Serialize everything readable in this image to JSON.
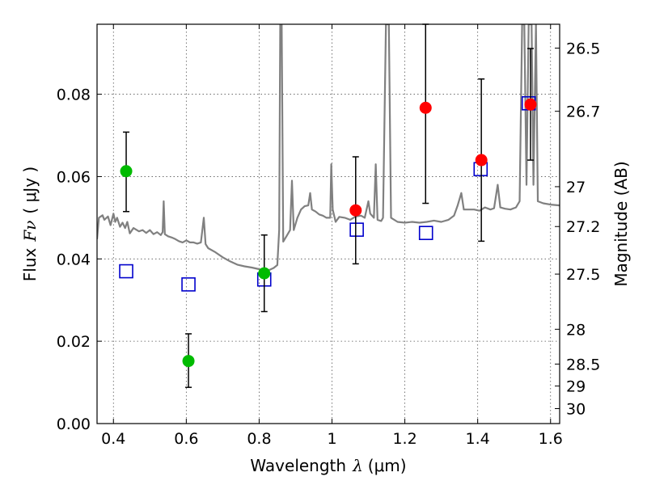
{
  "chart_data": {
    "type": "scatter",
    "xlabel_text": "Wavelength",
    "xlabel_symbol": "λ",
    "xlabel_unit": "(μm)",
    "ylabel_text": "Flux",
    "ylabel_symbol": "Fν",
    "ylabel_unit": "( μJy )",
    "y2label": "Magnitude (AB)",
    "xlim": [
      0.355,
      1.625
    ],
    "ylim": [
      0.0,
      0.097
    ],
    "grid": true,
    "legend": "none",
    "x_ticks": [
      {
        "value": 0.4,
        "label": "0.4"
      },
      {
        "value": 0.6,
        "label": "0.6"
      },
      {
        "value": 0.8,
        "label": "0.8"
      },
      {
        "value": 1.0,
        "label": "1"
      },
      {
        "value": 1.2,
        "label": "1.2"
      },
      {
        "value": 1.4,
        "label": "1.4"
      },
      {
        "value": 1.6,
        "label": "1.6"
      }
    ],
    "y_ticks": [
      {
        "value": 0.0,
        "label": "0.00"
      },
      {
        "value": 0.02,
        "label": "0.02"
      },
      {
        "value": 0.04,
        "label": "0.04"
      },
      {
        "value": 0.06,
        "label": "0.06"
      },
      {
        "value": 0.08,
        "label": "0.08"
      }
    ],
    "y2_ticks": [
      {
        "value": 26.5,
        "label": "26.5"
      },
      {
        "value": 26.7,
        "label": "26.7"
      },
      {
        "value": 27.0,
        "label": "27"
      },
      {
        "value": 27.2,
        "label": "27.2"
      },
      {
        "value": 27.5,
        "label": "27.5"
      },
      {
        "value": 28.0,
        "label": "28"
      },
      {
        "value": 28.5,
        "label": "28.5"
      },
      {
        "value": 29.0,
        "label": "29"
      },
      {
        "value": 30.0,
        "label": "30"
      }
    ],
    "colors": {
      "model_line": "#808080",
      "model_points": "#0000cc",
      "optical_detections": "#00bb00",
      "nir_detections": "#ff0000",
      "errorbars": "#000000",
      "grid": "#555555"
    },
    "series": [
      {
        "style": "errorbar-circle",
        "color": "#00bb00",
        "points": [
          {
            "x": 0.435,
            "y": 0.0613,
            "ylo": 0.0515,
            "yhi": 0.0708
          },
          {
            "x": 0.606,
            "y": 0.0152,
            "ylo": 0.0088,
            "yhi": 0.0218
          },
          {
            "x": 0.814,
            "y": 0.0365,
            "ylo": 0.0272,
            "yhi": 0.0458
          }
        ]
      },
      {
        "style": "errorbar-circle",
        "color": "#ff0000",
        "points": [
          {
            "x": 1.065,
            "y": 0.0518,
            "ylo": 0.0388,
            "yhi": 0.0648
          },
          {
            "x": 1.257,
            "y": 0.0767,
            "ylo": 0.0535,
            "yhi": 0.097
          },
          {
            "x": 1.41,
            "y": 0.064,
            "ylo": 0.0443,
            "yhi": 0.0837
          },
          {
            "x": 1.545,
            "y": 0.0775,
            "ylo": 0.064,
            "yhi": 0.0911
          }
        ]
      },
      {
        "style": "open-square",
        "color": "#0000cc",
        "points": [
          {
            "x": 0.435,
            "y": 0.037
          },
          {
            "x": 0.606,
            "y": 0.0338
          },
          {
            "x": 0.814,
            "y": 0.035
          },
          {
            "x": 1.068,
            "y": 0.0471
          },
          {
            "x": 1.258,
            "y": 0.0463
          },
          {
            "x": 1.408,
            "y": 0.0618
          },
          {
            "x": 1.54,
            "y": 0.0778
          }
        ]
      },
      {
        "style": "line",
        "color": "#808080",
        "points": [
          [
            0.355,
            0.0448
          ],
          [
            0.36,
            0.05
          ],
          [
            0.37,
            0.0506
          ],
          [
            0.375,
            0.0495
          ],
          [
            0.385,
            0.0503
          ],
          [
            0.392,
            0.0482
          ],
          [
            0.4,
            0.051
          ],
          [
            0.405,
            0.049
          ],
          [
            0.41,
            0.05
          ],
          [
            0.418,
            0.0478
          ],
          [
            0.425,
            0.0488
          ],
          [
            0.432,
            0.0475
          ],
          [
            0.438,
            0.049
          ],
          [
            0.445,
            0.0462
          ],
          [
            0.455,
            0.0475
          ],
          [
            0.47,
            0.0467
          ],
          [
            0.48,
            0.047
          ],
          [
            0.49,
            0.0463
          ],
          [
            0.5,
            0.047
          ],
          [
            0.51,
            0.046
          ],
          [
            0.52,
            0.0465
          ],
          [
            0.53,
            0.0458
          ],
          [
            0.535,
            0.0465
          ],
          [
            0.538,
            0.054
          ],
          [
            0.541,
            0.046
          ],
          [
            0.55,
            0.0455
          ],
          [
            0.56,
            0.0452
          ],
          [
            0.57,
            0.0448
          ],
          [
            0.58,
            0.0443
          ],
          [
            0.59,
            0.044
          ],
          [
            0.6,
            0.0445
          ],
          [
            0.61,
            0.044
          ],
          [
            0.62,
            0.044
          ],
          [
            0.63,
            0.0437
          ],
          [
            0.64,
            0.044
          ],
          [
            0.648,
            0.05
          ],
          [
            0.653,
            0.0436
          ],
          [
            0.66,
            0.0426
          ],
          [
            0.68,
            0.0416
          ],
          [
            0.7,
            0.0404
          ],
          [
            0.72,
            0.0394
          ],
          [
            0.74,
            0.0386
          ],
          [
            0.76,
            0.0382
          ],
          [
            0.78,
            0.0379
          ],
          [
            0.8,
            0.0375
          ],
          [
            0.82,
            0.037
          ],
          [
            0.84,
            0.0378
          ],
          [
            0.85,
            0.0385
          ],
          [
            0.855,
            0.047
          ],
          [
            0.858,
            0.097
          ],
          [
            0.862,
            0.097
          ],
          [
            0.866,
            0.0442
          ],
          [
            0.875,
            0.0455
          ],
          [
            0.885,
            0.047
          ],
          [
            0.89,
            0.059
          ],
          [
            0.895,
            0.047
          ],
          [
            0.905,
            0.05
          ],
          [
            0.915,
            0.052
          ],
          [
            0.925,
            0.0528
          ],
          [
            0.935,
            0.053
          ],
          [
            0.94,
            0.056
          ],
          [
            0.945,
            0.052
          ],
          [
            0.955,
            0.0515
          ],
          [
            0.965,
            0.0508
          ],
          [
            0.975,
            0.0505
          ],
          [
            0.985,
            0.05
          ],
          [
            0.995,
            0.05
          ],
          [
            0.998,
            0.063
          ],
          [
            1.002,
            0.052
          ],
          [
            1.01,
            0.049
          ],
          [
            1.02,
            0.0502
          ],
          [
            1.035,
            0.05
          ],
          [
            1.05,
            0.0495
          ],
          [
            1.065,
            0.0503
          ],
          [
            1.08,
            0.0505
          ],
          [
            1.09,
            0.05
          ],
          [
            1.1,
            0.054
          ],
          [
            1.105,
            0.051
          ],
          [
            1.115,
            0.05
          ],
          [
            1.12,
            0.063
          ],
          [
            1.125,
            0.0495
          ],
          [
            1.135,
            0.0492
          ],
          [
            1.14,
            0.05
          ],
          [
            1.148,
            0.097
          ],
          [
            1.156,
            0.097
          ],
          [
            1.162,
            0.05
          ],
          [
            1.18,
            0.049
          ],
          [
            1.2,
            0.0488
          ],
          [
            1.22,
            0.049
          ],
          [
            1.24,
            0.0488
          ],
          [
            1.26,
            0.049
          ],
          [
            1.28,
            0.0493
          ],
          [
            1.3,
            0.049
          ],
          [
            1.32,
            0.0495
          ],
          [
            1.335,
            0.0505
          ],
          [
            1.345,
            0.053
          ],
          [
            1.355,
            0.056
          ],
          [
            1.362,
            0.052
          ],
          [
            1.375,
            0.052
          ],
          [
            1.39,
            0.052
          ],
          [
            1.405,
            0.0517
          ],
          [
            1.42,
            0.0525
          ],
          [
            1.435,
            0.052
          ],
          [
            1.445,
            0.0523
          ],
          [
            1.455,
            0.058
          ],
          [
            1.462,
            0.0525
          ],
          [
            1.475,
            0.0522
          ],
          [
            1.49,
            0.052
          ],
          [
            1.505,
            0.0525
          ],
          [
            1.515,
            0.054
          ],
          [
            1.522,
            0.097
          ],
          [
            1.528,
            0.097
          ],
          [
            1.534,
            0.058
          ],
          [
            1.54,
            0.097
          ],
          [
            1.548,
            0.097
          ],
          [
            1.553,
            0.058
          ],
          [
            1.56,
            0.097
          ],
          [
            1.565,
            0.054
          ],
          [
            1.58,
            0.0535
          ],
          [
            1.6,
            0.0532
          ],
          [
            1.625,
            0.053
          ]
        ]
      }
    ]
  }
}
